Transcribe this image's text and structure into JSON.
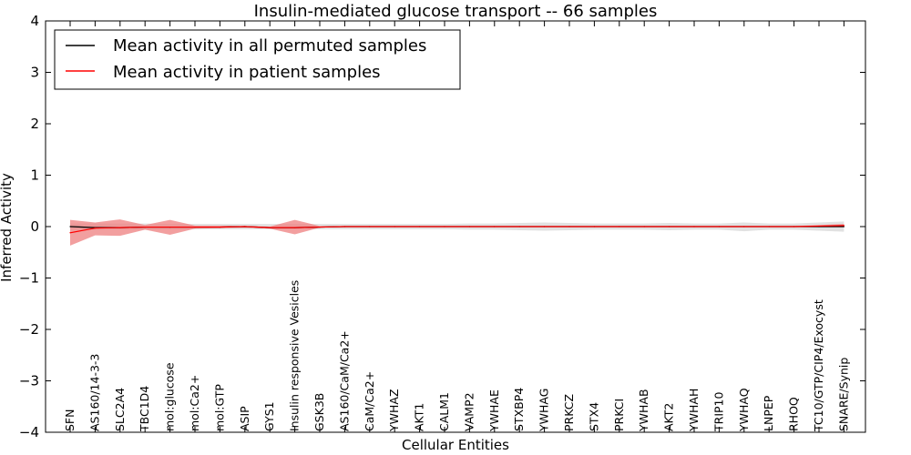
{
  "chart_data": {
    "type": "line",
    "title": "Insulin-mediated glucose transport -- 66 samples",
    "xlabel": "Cellular Entities",
    "ylabel": "Inferred Activity",
    "ylim": [
      -4,
      4
    ],
    "yticks": [
      4,
      3,
      2,
      1,
      0,
      -1,
      -2,
      -3,
      -4
    ],
    "ytick_labels": [
      "4",
      "3",
      "2",
      "1",
      "0",
      "−1",
      "−2",
      "−3",
      "−4"
    ],
    "grid": false,
    "legend_position": "top-left",
    "categories": [
      "SFN",
      "AS160/14-3-3",
      "SLC2A4",
      "TBC1D4",
      "mol:glucose",
      "mol:Ca2+",
      "mol:GTP",
      "ASIP",
      "GYS1",
      "Insulin responsive Vesicles",
      "GSK3B",
      "AS160/CaM/Ca2+",
      "CaM/Ca2+",
      "YWHAZ",
      "AKT1",
      "CALM1",
      "VAMP2",
      "YWHAE",
      "STXBP4",
      "YWHAG",
      "PRKCZ",
      "STX4",
      "PRKCI",
      "YWHAB",
      "AKT2",
      "YWHAH",
      "TRIP10",
      "YWHAQ",
      "LNPEP",
      "RHOQ",
      "TC10/GTP/CIP4/Exocyst",
      "SNARE/Synip"
    ],
    "series": [
      {
        "name": "Mean activity in all permuted samples",
        "color": "#000000",
        "values": [
          0.0,
          -0.02,
          -0.02,
          -0.01,
          -0.01,
          -0.01,
          -0.01,
          0.0,
          -0.02,
          -0.02,
          -0.01,
          0.0,
          0.0,
          0.0,
          0.0,
          0.0,
          0.0,
          0.0,
          0.0,
          0.0,
          0.0,
          0.0,
          0.0,
          0.0,
          0.0,
          0.0,
          0.0,
          0.0,
          0.0,
          0.0,
          0.0,
          0.0
        ],
        "band_lower": [
          -0.06,
          -0.06,
          -0.06,
          -0.06,
          -0.05,
          -0.05,
          -0.05,
          -0.05,
          -0.05,
          -0.05,
          -0.05,
          -0.05,
          -0.05,
          -0.05,
          -0.05,
          -0.05,
          -0.06,
          -0.06,
          -0.07,
          -0.08,
          -0.07,
          -0.06,
          -0.06,
          -0.06,
          -0.07,
          -0.06,
          -0.06,
          -0.09,
          -0.06,
          -0.06,
          -0.08,
          -0.1
        ],
        "band_upper": [
          0.06,
          0.06,
          0.06,
          0.06,
          0.05,
          0.05,
          0.05,
          0.05,
          0.05,
          0.05,
          0.05,
          0.05,
          0.05,
          0.05,
          0.05,
          0.05,
          0.06,
          0.06,
          0.07,
          0.08,
          0.07,
          0.06,
          0.06,
          0.06,
          0.07,
          0.06,
          0.06,
          0.08,
          0.06,
          0.06,
          0.08,
          0.1
        ]
      },
      {
        "name": "Mean activity in patient samples",
        "color": "#ff0000",
        "fill": "#ee7f7f",
        "values": [
          -0.12,
          -0.03,
          -0.02,
          -0.01,
          -0.01,
          -0.01,
          -0.01,
          0.0,
          -0.02,
          -0.02,
          -0.01,
          0.0,
          0.0,
          0.0,
          0.0,
          0.0,
          0.0,
          0.0,
          0.0,
          0.0,
          0.0,
          0.0,
          0.0,
          0.0,
          0.0,
          0.0,
          0.0,
          0.0,
          0.0,
          0.0,
          0.01,
          0.02
        ],
        "band_lower": [
          -0.37,
          -0.17,
          -0.18,
          -0.06,
          -0.16,
          -0.04,
          -0.03,
          -0.02,
          -0.04,
          -0.15,
          -0.02,
          -0.01,
          -0.01,
          -0.01,
          -0.01,
          -0.01,
          -0.01,
          -0.01,
          -0.01,
          -0.01,
          -0.01,
          -0.01,
          -0.01,
          -0.01,
          -0.01,
          -0.01,
          -0.01,
          -0.01,
          -0.01,
          -0.01,
          -0.01,
          -0.01
        ],
        "band_upper": [
          0.13,
          0.08,
          0.14,
          0.03,
          0.13,
          0.02,
          0.02,
          0.01,
          0.0,
          0.13,
          0.01,
          0.01,
          0.01,
          0.01,
          0.01,
          0.01,
          0.01,
          0.01,
          0.01,
          0.01,
          0.01,
          0.01,
          0.01,
          0.01,
          0.01,
          0.01,
          0.01,
          0.01,
          0.01,
          0.01,
          0.03,
          0.05
        ]
      }
    ]
  }
}
